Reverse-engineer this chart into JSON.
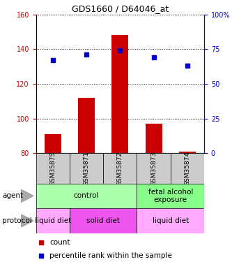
{
  "title": "GDS1660 / D64046_at",
  "samples": [
    "GSM35875",
    "GSM35871",
    "GSM35872",
    "GSM35873",
    "GSM35874"
  ],
  "count_values": [
    91,
    112,
    148,
    97,
    81
  ],
  "count_base": 80,
  "percentile_values": [
    67,
    71,
    74,
    69,
    63
  ],
  "ylim_left": [
    80,
    160
  ],
  "ylim_right": [
    0,
    100
  ],
  "left_ticks": [
    80,
    100,
    120,
    140,
    160
  ],
  "right_ticks": [
    0,
    25,
    50,
    75,
    100
  ],
  "right_tick_labels": [
    "0",
    "25",
    "50",
    "75",
    "100%"
  ],
  "bar_color": "#cc0000",
  "dot_color": "#0000cc",
  "agent_groups": [
    {
      "label": "control",
      "span": [
        0,
        3
      ],
      "color": "#aaffaa"
    },
    {
      "label": "fetal alcohol\nexposure",
      "span": [
        3,
        5
      ],
      "color": "#88ff88"
    }
  ],
  "protocol_groups": [
    {
      "label": "liquid diet",
      "span": [
        0,
        1
      ],
      "color": "#ffaaff"
    },
    {
      "label": "solid diet",
      "span": [
        1,
        3
      ],
      "color": "#ee55ee"
    },
    {
      "label": "liquid diet",
      "span": [
        3,
        5
      ],
      "color": "#ffaaff"
    }
  ],
  "legend_count_label": "count",
  "legend_pct_label": "percentile rank within the sample",
  "sample_box_color": "#cccccc",
  "agent_label": "agent",
  "protocol_label": "protocol"
}
